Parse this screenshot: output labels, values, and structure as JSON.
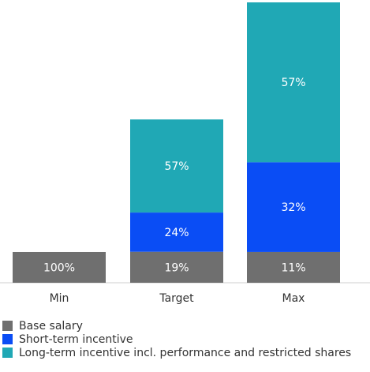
{
  "chart_data": {
    "type": "bar",
    "stacked": true,
    "categories": [
      "Min",
      "Target",
      "Max"
    ],
    "series": [
      {
        "name": "Base salary",
        "color": "#6f6f6f",
        "values": [
          100,
          19,
          11
        ],
        "labels": [
          "100%",
          "19%",
          "11%"
        ]
      },
      {
        "name": "Short-term incentive",
        "color": "#0a4df5",
        "values": [
          0,
          24,
          32
        ],
        "labels": [
          "",
          "24%",
          "32%"
        ]
      },
      {
        "name": "Long-term incentive incl. performance and restricted shares",
        "color": "#20a8b5",
        "values": [
          0,
          57,
          57
        ],
        "labels": [
          "",
          "57%",
          "57%"
        ]
      }
    ],
    "bar_totals_relative": [
      1.0,
      5.3,
      9.1
    ],
    "legend_position": "bottom-left",
    "grid": false
  }
}
